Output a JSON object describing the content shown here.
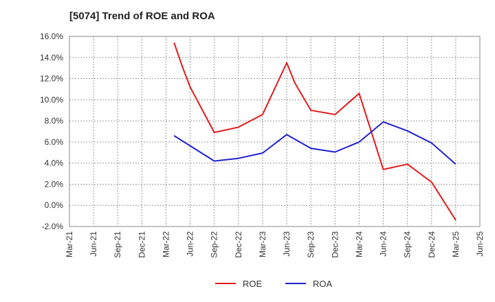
{
  "chart_data": {
    "type": "line",
    "title": "[5074]  Trend of ROE and ROA",
    "xlabel": "",
    "ylabel": "",
    "x_tick_labels": [
      "Mar-21",
      "Jun-21",
      "Sep-21",
      "Dec-21",
      "Mar-22",
      "Jun-22",
      "Sep-22",
      "Dec-22",
      "Mar-23",
      "Jun-23",
      "Sep-23",
      "Dec-23",
      "Mar-24",
      "Jun-24",
      "Sep-24",
      "Dec-24",
      "Mar-25",
      "Jun-25"
    ],
    "y_tick_labels": [
      "-2.0%",
      "0.0%",
      "2.0%",
      "4.0%",
      "6.0%",
      "8.0%",
      "10.0%",
      "12.0%",
      "14.0%",
      "16.0%"
    ],
    "ylim": [
      -2,
      16
    ],
    "grid": true,
    "legend_position": "bottom",
    "series": [
      {
        "name": "ROE",
        "color": "#e31a1c",
        "x": [
          "Apr-22",
          "May-22",
          "Jun-22",
          "Sep-22",
          "Dec-22",
          "Mar-23",
          "Jun-23",
          "Jul-23",
          "Sep-23",
          "Dec-23",
          "Mar-24",
          "Jun-24",
          "Sep-24",
          "Dec-24",
          "Mar-25"
        ],
        "values": [
          15.4,
          13.2,
          11.2,
          6.9,
          7.4,
          8.6,
          13.5,
          11.6,
          9.0,
          8.6,
          10.6,
          3.4,
          3.9,
          2.2,
          -1.4
        ]
      },
      {
        "name": "ROA",
        "color": "#1f1fcf",
        "x": [
          "Apr-22",
          "Sep-22",
          "Dec-22",
          "Mar-23",
          "Jun-23",
          "Sep-23",
          "Dec-23",
          "Mar-24",
          "Jun-24",
          "Sep-24",
          "Dec-24",
          "Mar-25"
        ],
        "values": [
          6.6,
          4.2,
          4.45,
          4.95,
          6.7,
          5.4,
          5.05,
          6.0,
          7.9,
          7.05,
          5.9,
          3.9
        ]
      }
    ]
  }
}
